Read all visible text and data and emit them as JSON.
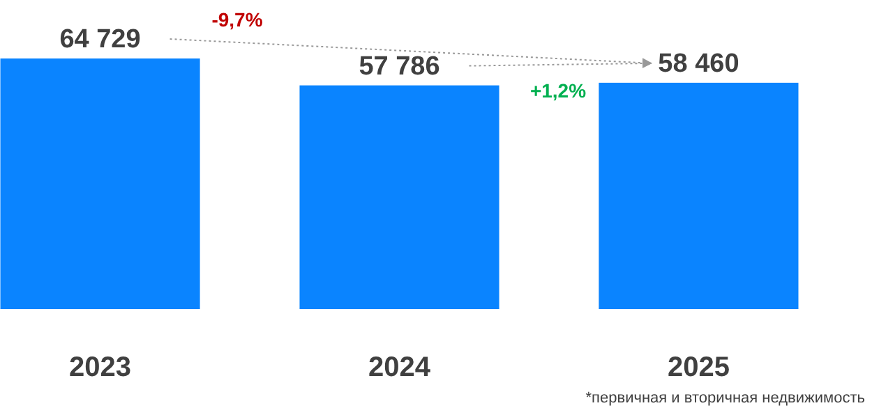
{
  "chart_data": {
    "type": "bar",
    "categories": [
      "2023",
      "2024",
      "2025"
    ],
    "values": [
      64729,
      57786,
      58460
    ],
    "value_labels": [
      "64 729",
      "57 786",
      "58 460"
    ],
    "color": "#0a84ff",
    "annotations": [
      "-9,7%",
      "+1,2%",
      "*первичная и вторичная недвижимость"
    ]
  }
}
